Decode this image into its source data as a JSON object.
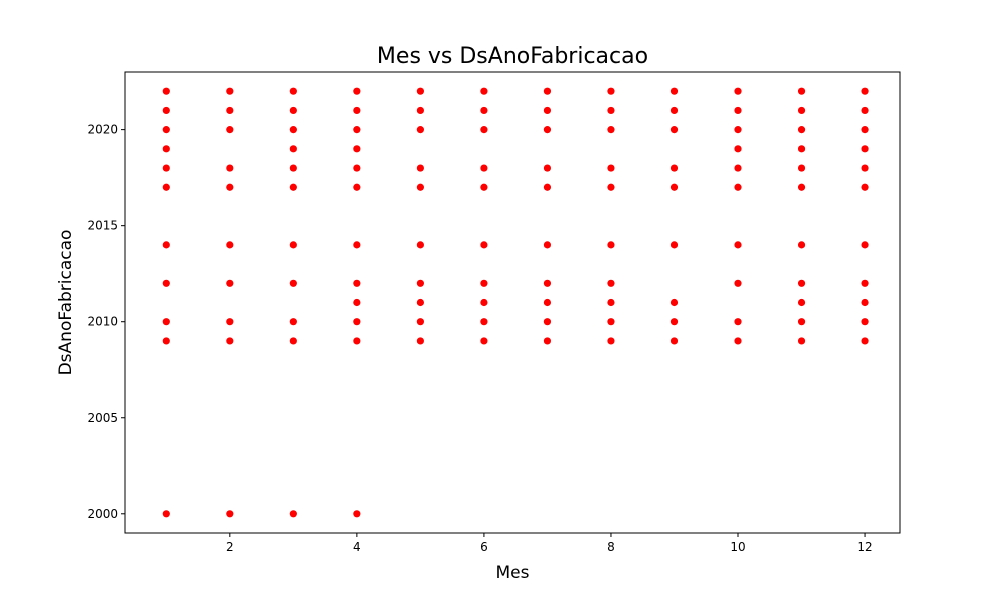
{
  "chart_data": {
    "type": "scatter",
    "title": "Mes vs DsAnoFabricacao",
    "xlabel": "Mes",
    "ylabel": "DsAnoFabricacao",
    "xlim": [
      0.35,
      12.55
    ],
    "ylim": [
      1999,
      2023
    ],
    "xticks": [
      2,
      4,
      6,
      8,
      10,
      12
    ],
    "yticks": [
      2000,
      2005,
      2010,
      2015,
      2020
    ],
    "grid": false,
    "legend": "none",
    "marker_color": "#ff0000",
    "series": [
      {
        "points": [
          [
            1,
            2000
          ],
          [
            1,
            2009
          ],
          [
            1,
            2010
          ],
          [
            1,
            2012
          ],
          [
            1,
            2014
          ],
          [
            1,
            2017
          ],
          [
            1,
            2018
          ],
          [
            1,
            2019
          ],
          [
            1,
            2020
          ],
          [
            1,
            2021
          ],
          [
            1,
            2022
          ],
          [
            2,
            2000
          ],
          [
            2,
            2009
          ],
          [
            2,
            2010
          ],
          [
            2,
            2012
          ],
          [
            2,
            2014
          ],
          [
            2,
            2017
          ],
          [
            2,
            2018
          ],
          [
            2,
            2020
          ],
          [
            2,
            2021
          ],
          [
            2,
            2022
          ],
          [
            3,
            2000
          ],
          [
            3,
            2009
          ],
          [
            3,
            2010
          ],
          [
            3,
            2012
          ],
          [
            3,
            2014
          ],
          [
            3,
            2017
          ],
          [
            3,
            2018
          ],
          [
            3,
            2019
          ],
          [
            3,
            2020
          ],
          [
            3,
            2021
          ],
          [
            3,
            2022
          ],
          [
            4,
            2000
          ],
          [
            4,
            2009
          ],
          [
            4,
            2010
          ],
          [
            4,
            2011
          ],
          [
            4,
            2012
          ],
          [
            4,
            2014
          ],
          [
            4,
            2017
          ],
          [
            4,
            2018
          ],
          [
            4,
            2019
          ],
          [
            4,
            2020
          ],
          [
            4,
            2021
          ],
          [
            4,
            2022
          ],
          [
            5,
            2009
          ],
          [
            5,
            2010
          ],
          [
            5,
            2011
          ],
          [
            5,
            2012
          ],
          [
            5,
            2014
          ],
          [
            5,
            2017
          ],
          [
            5,
            2018
          ],
          [
            5,
            2020
          ],
          [
            5,
            2021
          ],
          [
            5,
            2022
          ],
          [
            6,
            2009
          ],
          [
            6,
            2010
          ],
          [
            6,
            2011
          ],
          [
            6,
            2012
          ],
          [
            6,
            2014
          ],
          [
            6,
            2017
          ],
          [
            6,
            2018
          ],
          [
            6,
            2020
          ],
          [
            6,
            2021
          ],
          [
            6,
            2022
          ],
          [
            7,
            2009
          ],
          [
            7,
            2010
          ],
          [
            7,
            2011
          ],
          [
            7,
            2012
          ],
          [
            7,
            2014
          ],
          [
            7,
            2017
          ],
          [
            7,
            2018
          ],
          [
            7,
            2020
          ],
          [
            7,
            2021
          ],
          [
            7,
            2022
          ],
          [
            8,
            2009
          ],
          [
            8,
            2010
          ],
          [
            8,
            2011
          ],
          [
            8,
            2012
          ],
          [
            8,
            2014
          ],
          [
            8,
            2017
          ],
          [
            8,
            2018
          ],
          [
            8,
            2020
          ],
          [
            8,
            2021
          ],
          [
            8,
            2022
          ],
          [
            9,
            2009
          ],
          [
            9,
            2010
          ],
          [
            9,
            2011
          ],
          [
            9,
            2014
          ],
          [
            9,
            2017
          ],
          [
            9,
            2018
          ],
          [
            9,
            2020
          ],
          [
            9,
            2021
          ],
          [
            9,
            2022
          ],
          [
            10,
            2009
          ],
          [
            10,
            2010
          ],
          [
            10,
            2012
          ],
          [
            10,
            2014
          ],
          [
            10,
            2017
          ],
          [
            10,
            2018
          ],
          [
            10,
            2019
          ],
          [
            10,
            2020
          ],
          [
            10,
            2021
          ],
          [
            10,
            2022
          ],
          [
            11,
            2009
          ],
          [
            11,
            2010
          ],
          [
            11,
            2011
          ],
          [
            11,
            2012
          ],
          [
            11,
            2014
          ],
          [
            11,
            2017
          ],
          [
            11,
            2018
          ],
          [
            11,
            2019
          ],
          [
            11,
            2020
          ],
          [
            11,
            2021
          ],
          [
            11,
            2022
          ],
          [
            12,
            2009
          ],
          [
            12,
            2010
          ],
          [
            12,
            2011
          ],
          [
            12,
            2012
          ],
          [
            12,
            2014
          ],
          [
            12,
            2017
          ],
          [
            12,
            2018
          ],
          [
            12,
            2019
          ],
          [
            12,
            2020
          ],
          [
            12,
            2021
          ],
          [
            12,
            2022
          ]
        ]
      }
    ]
  }
}
